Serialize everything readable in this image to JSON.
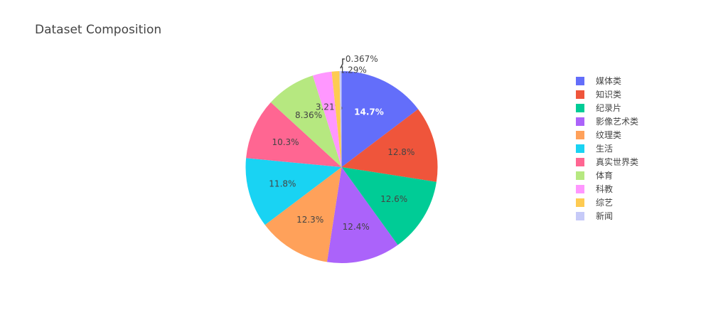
{
  "chart_data": {
    "type": "pie",
    "title": "Dataset Composition",
    "categories": [
      "媒体类",
      "知识类",
      "纪录片",
      "影像艺术类",
      "纹理类",
      "生活",
      "真实世界类",
      "体育",
      "科教",
      "综艺",
      "新闻"
    ],
    "values": [
      14.7,
      12.8,
      12.6,
      12.4,
      12.3,
      11.8,
      10.3,
      8.36,
      3.21,
      1.29,
      0.367
    ],
    "labels": [
      "14.7%",
      "12.8%",
      "12.6%",
      "12.4%",
      "12.3%",
      "11.8%",
      "10.3%",
      "8.36%",
      "3.21%",
      "1.29%",
      "0.367%"
    ],
    "colors": [
      "#636efa",
      "#EF553B",
      "#00cc96",
      "#ab63fa",
      "#FFA15A",
      "#19d3f3",
      "#FF6692",
      "#B6E880",
      "#FF97FF",
      "#FECB52",
      "#c6caf8"
    ],
    "legend_position": "right",
    "sort": "descending",
    "direction": "clockwise"
  }
}
